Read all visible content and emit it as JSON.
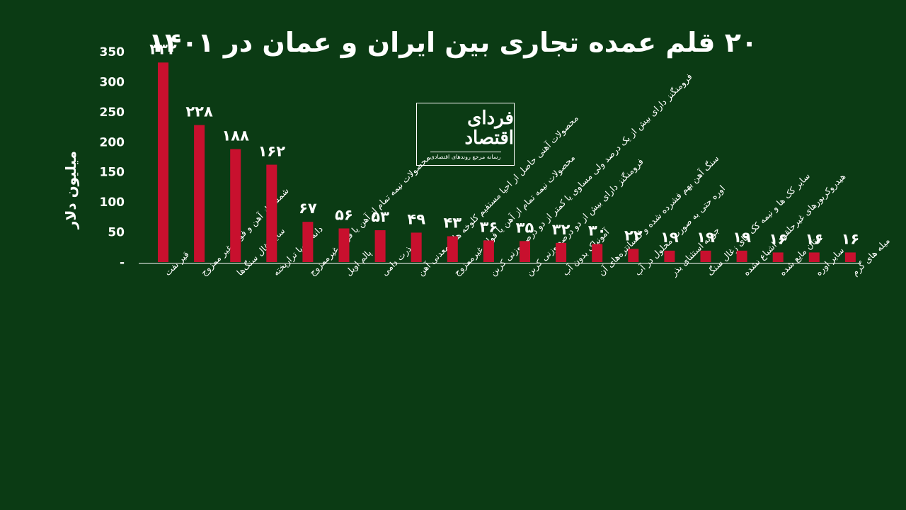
{
  "chart_data": {
    "type": "bar",
    "title": "۲۰ قلم عمده تجاری بین ایران و عمان در ۱۴۰۱",
    "ylabel": "میلیون دلار",
    "ylim": [
      0,
      350
    ],
    "ytick_labels": [
      "-",
      "50",
      "100",
      "150",
      "200",
      "250",
      "300",
      "350"
    ],
    "grid": false,
    "bar_color": "#c8102e",
    "categories": [
      "قیر نفت",
      "شمش از آهن و فولاد غیر ممزوج",
      "سایرزغال سنگ‌ها",
      "دانه سویا ترارپخته",
      "محصولات نیمه تمام از آهن یا فولاد غیرممزوج",
      "پالم اویل",
      "ذرت دامی",
      "محصولات آهنی حاصل از احیا مستقیم کلوخه های معدنی آهن",
      "محصولات نیمه تمام از آهن یا فولاد غیرممزوج",
      "فرومنگنز دارای بیش از یک درصد ولی مساوی یا کمتر از دو درصد وزنی کربن",
      "فرومنگنز دارای بیش از دو درصد وزنی کربن",
      "آمونیاک بدون آب",
      "سنگ آهن بهم فشرده شده و کنسانتره‌های آن",
      "اوره حتی به صورت محلول در آب",
      "جو به استثنای بذر",
      "سایر کک ها و نیمه کک های زغال سنگ",
      "هیدروکربورهای غیرحلقوی اشباع نشده",
      "بوتان مایع شده",
      "سایر اوره",
      "میله های گرم"
    ],
    "values": [
      332,
      228,
      188,
      162,
      67,
      56,
      53,
      49,
      43,
      36,
      35,
      32,
      30,
      22,
      19,
      19,
      19,
      16,
      16,
      16
    ],
    "value_labels": [
      "۳۳۲",
      "۲۲۸",
      "۱۸۸",
      "۱۶۲",
      "۶۷",
      "۵۶",
      "۵۳",
      "۴۹",
      "۴۳",
      "۳۶",
      "۳۵",
      "۳۲",
      "۳۰",
      "۲۲",
      "۱۹",
      "۱۹",
      "۱۹",
      "۱۶",
      "۱۶",
      "۱۶"
    ]
  },
  "logo": {
    "name": "فردای اقتصاد",
    "tagline": "رسانه مرجع روندهای اقتصادی"
  },
  "colors": {
    "background": "#0b3b14",
    "bar": "#c8102e",
    "text": "#ffffff"
  }
}
